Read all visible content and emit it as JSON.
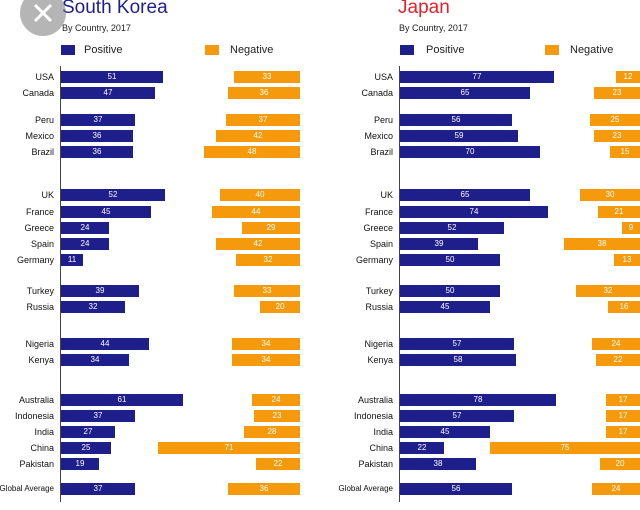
{
  "colors": {
    "positive": "#1f1f8c",
    "negative": "#f59a0c",
    "korea_title": "#1f1f8c",
    "japan_title": "#e8202a"
  },
  "close_button": {
    "icon": "close-icon"
  },
  "chart_data": [
    {
      "type": "bar",
      "title": "South Korea",
      "subtitle": "By Country, 2017",
      "legend": {
        "placement": "top",
        "entries": [
          "Positive",
          "Negative"
        ]
      },
      "categories": [
        "USA",
        "Canada",
        "Peru",
        "Mexico",
        "Brazil",
        "UK",
        "France",
        "Greece",
        "Spain",
        "Germany",
        "Turkey",
        "Russia",
        "Nigeria",
        "Kenya",
        "Australia",
        "Indonesia",
        "India",
        "China",
        "Pakistan",
        "Global Average"
      ],
      "series": [
        {
          "name": "Positive",
          "values": [
            51,
            47,
            37,
            36,
            36,
            52,
            45,
            24,
            24,
            11,
            39,
            32,
            44,
            34,
            61,
            37,
            27,
            25,
            19,
            37
          ]
        },
        {
          "name": "Negative",
          "values": [
            33,
            36,
            37,
            42,
            48,
            40,
            44,
            29,
            42,
            32,
            33,
            20,
            34,
            34,
            24,
            23,
            28,
            71,
            22,
            36
          ]
        }
      ],
      "grid": false
    },
    {
      "type": "bar",
      "title": "Japan",
      "subtitle": "By Country, 2017",
      "legend": {
        "placement": "top",
        "entries": [
          "Positive",
          "Negative"
        ]
      },
      "categories": [
        "USA",
        "Canada",
        "Peru",
        "Mexico",
        "Brazil",
        "UK",
        "France",
        "Greece",
        "Spain",
        "Germany",
        "Turkey",
        "Russia",
        "Nigeria",
        "Kenya",
        "Australia",
        "Indonesia",
        "India",
        "China",
        "Pakistan",
        "Global Average"
      ],
      "series": [
        {
          "name": "Positive",
          "values": [
            77,
            65,
            56,
            59,
            70,
            65,
            74,
            52,
            39,
            50,
            50,
            45,
            57,
            58,
            78,
            57,
            45,
            22,
            38,
            56
          ]
        },
        {
          "name": "Negative",
          "values": [
            12,
            23,
            25,
            23,
            15,
            30,
            21,
            9,
            38,
            13,
            32,
            16,
            24,
            22,
            17,
            17,
            17,
            75,
            20,
            24
          ]
        }
      ],
      "grid": false
    }
  ]
}
